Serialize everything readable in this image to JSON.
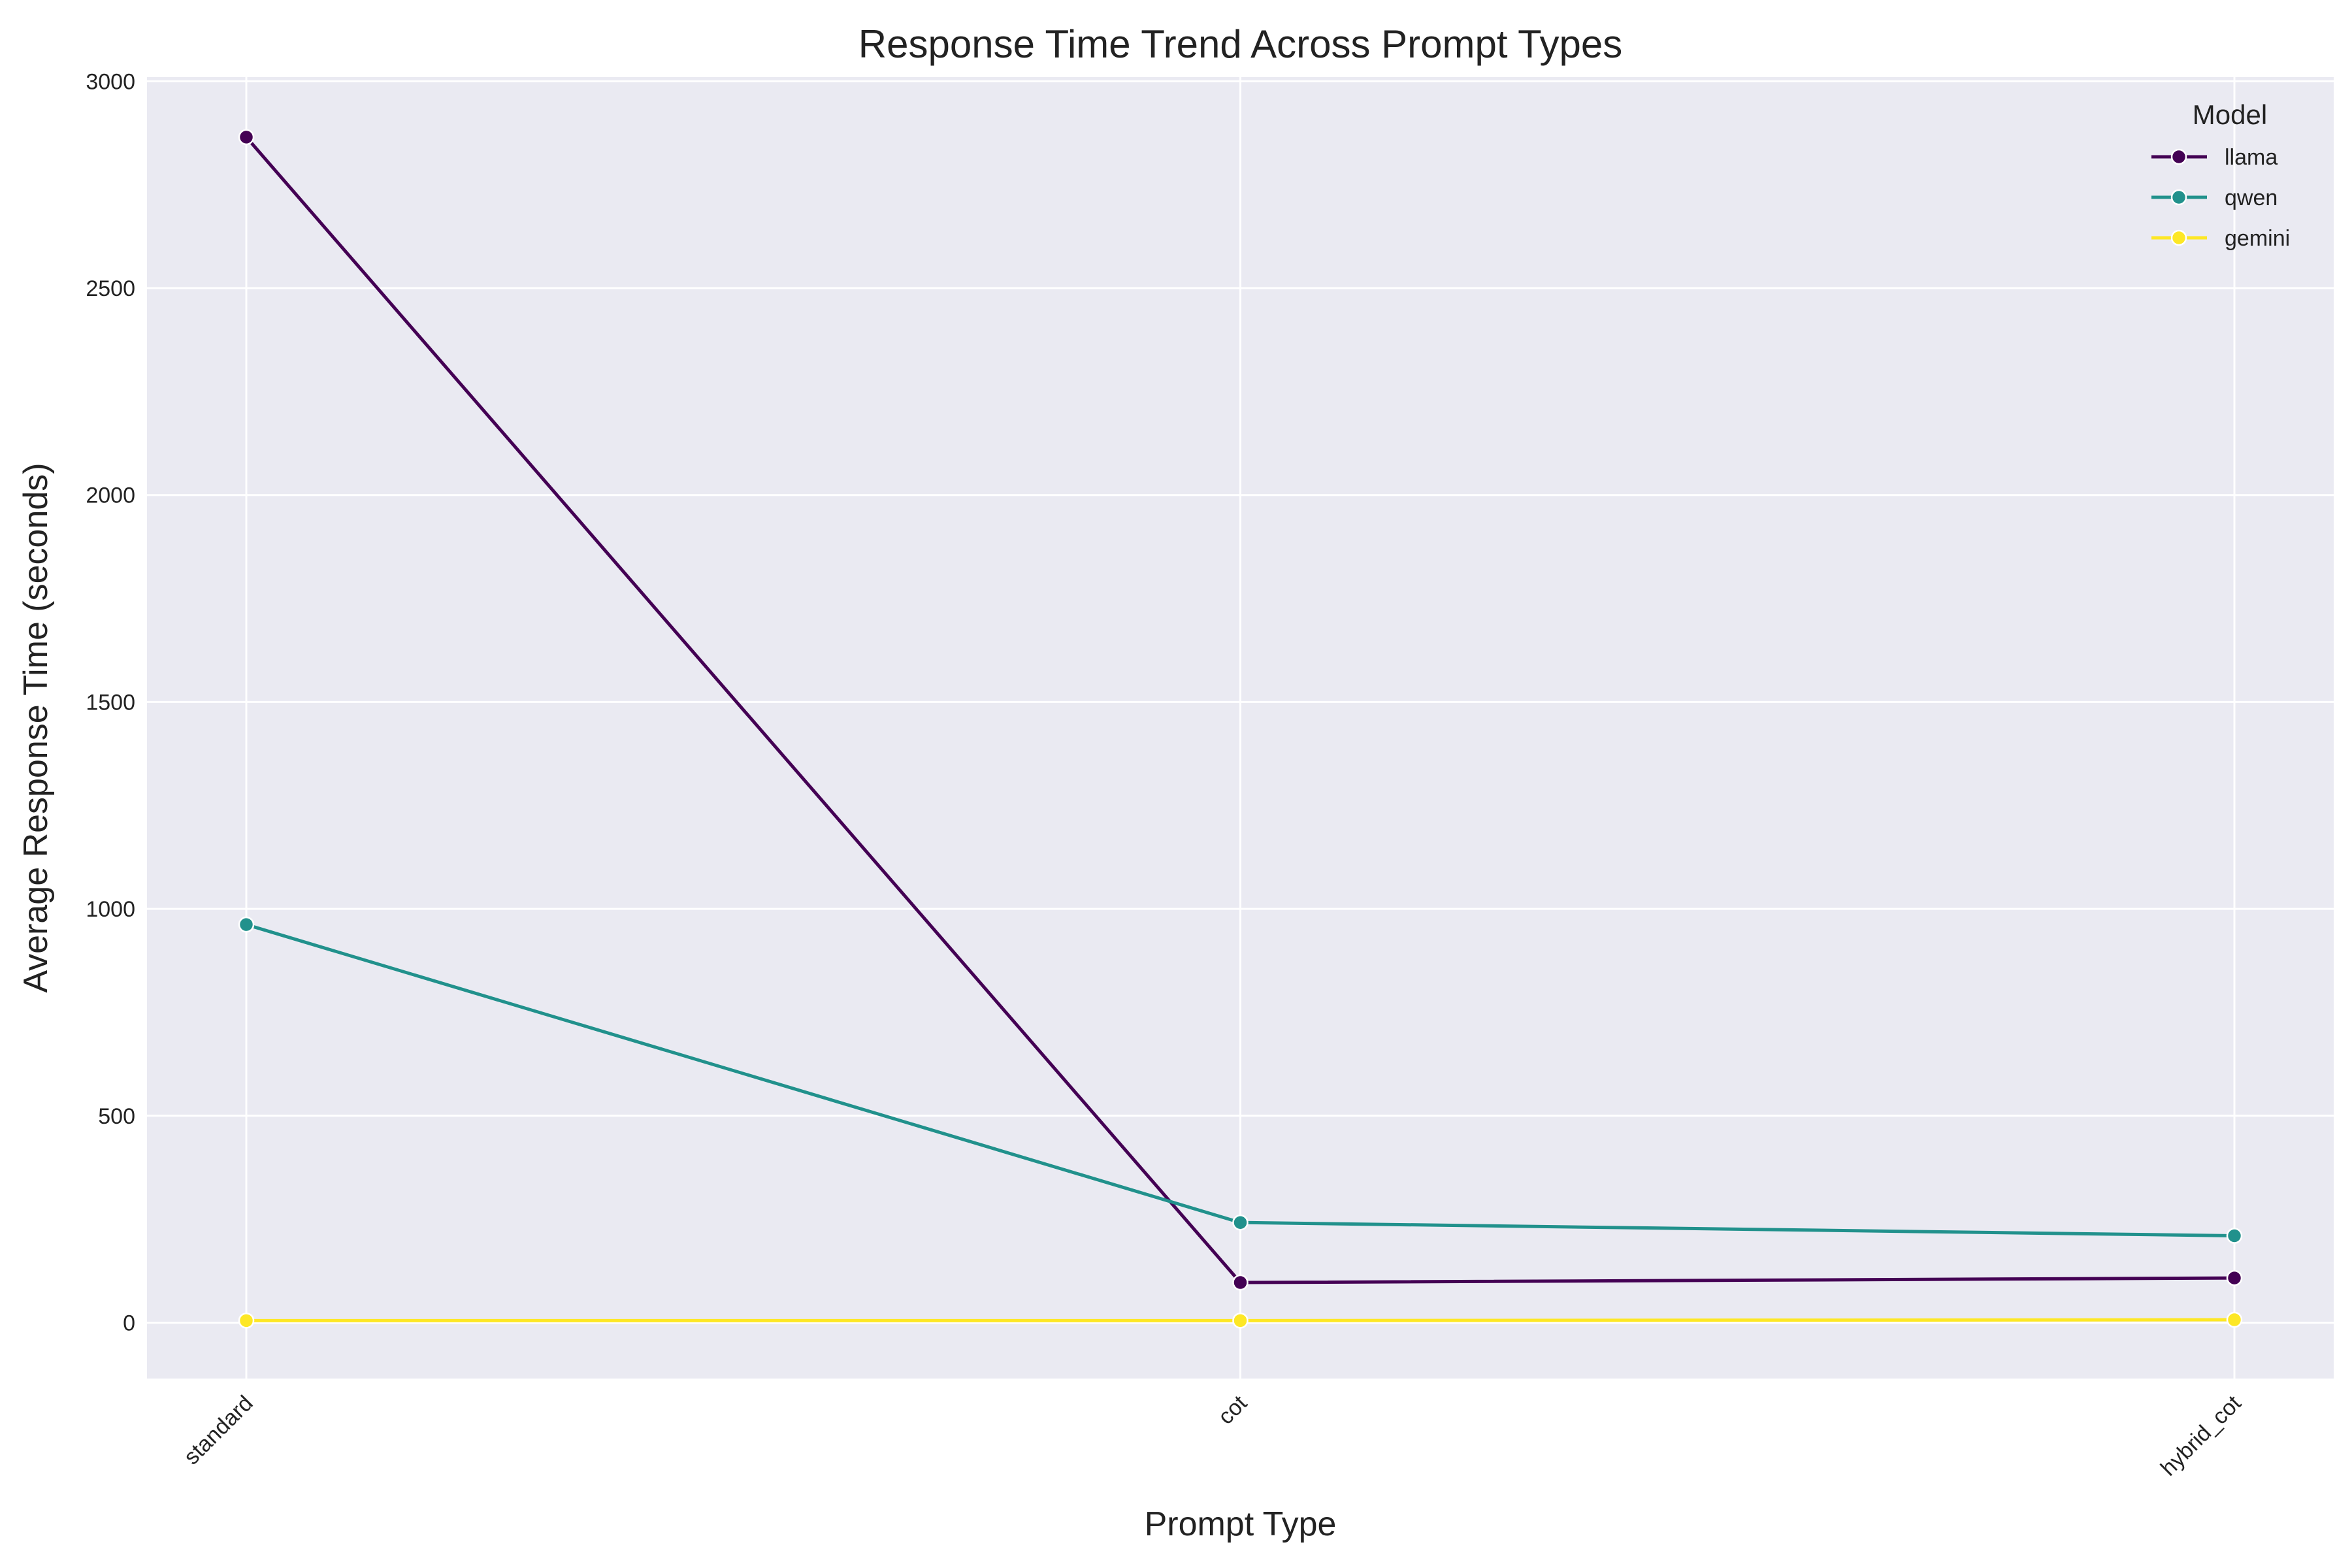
{
  "chart_data": {
    "type": "line",
    "title": "Response Time Trend Across Prompt Types",
    "xlabel": "Prompt Type",
    "ylabel": "Average Response Time (seconds)",
    "categories": [
      "standard",
      "cot",
      "hybrid_cot"
    ],
    "ylim": [
      -135,
      3010
    ],
    "yticks": [
      0,
      500,
      1000,
      1500,
      2000,
      2500,
      3000
    ],
    "grid": true,
    "legend": {
      "title": "Model",
      "placement": "top-right"
    },
    "series": [
      {
        "name": "llama",
        "color": "#440154",
        "values": [
          2865,
          97,
          108
        ]
      },
      {
        "name": "qwen",
        "color": "#21918c",
        "values": [
          962,
          242,
          210
        ]
      },
      {
        "name": "gemini",
        "color": "#fde725",
        "values": [
          5,
          5,
          7
        ]
      }
    ]
  },
  "colors": {
    "plot_background": "#eaeaf2",
    "gridline": "#ffffff"
  }
}
